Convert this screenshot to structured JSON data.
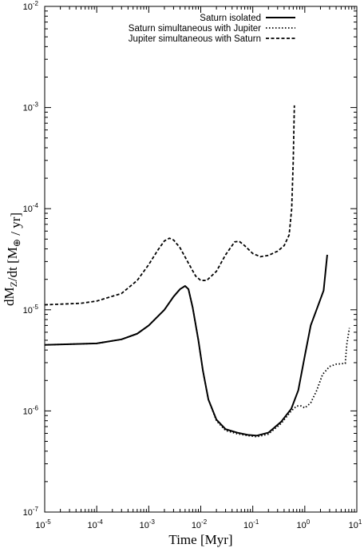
{
  "chart_data": {
    "type": "line",
    "title": "",
    "xlabel": "Time [Myr]",
    "ylabel": "dM_Z/dt [M_⊕ / yr]",
    "x_scale": "log",
    "y_scale": "log",
    "xlim": [
      1e-05,
      10
    ],
    "ylim": [
      1e-07,
      0.01
    ],
    "grid": false,
    "legend_position": "top-right",
    "x_ticks": [
      {
        "value": 1e-05,
        "base": "10",
        "exp": "-5"
      },
      {
        "value": 0.0001,
        "base": "10",
        "exp": "-4"
      },
      {
        "value": 0.001,
        "base": "10",
        "exp": "-3"
      },
      {
        "value": 0.01,
        "base": "10",
        "exp": "-2"
      },
      {
        "value": 0.1,
        "base": "10",
        "exp": "-1"
      },
      {
        "value": 1,
        "base": "10",
        "exp": "0"
      },
      {
        "value": 10,
        "base": "10",
        "exp": "1"
      }
    ],
    "y_ticks": [
      {
        "value": 1e-07,
        "base": "10",
        "exp": "-7"
      },
      {
        "value": 1e-06,
        "base": "10",
        "exp": "-6"
      },
      {
        "value": 1e-05,
        "base": "10",
        "exp": "-5"
      },
      {
        "value": 0.0001,
        "base": "10",
        "exp": "-4"
      },
      {
        "value": 0.001,
        "base": "10",
        "exp": "-3"
      },
      {
        "value": 0.01,
        "base": "10",
        "exp": "-2"
      }
    ],
    "series": [
      {
        "name": "Saturn isolated",
        "style": "solid",
        "points": [
          [
            1e-05,
            4.5e-06
          ],
          [
            0.0001,
            4.65e-06
          ],
          [
            0.0003,
            5.1e-06
          ],
          [
            0.0006,
            5.8e-06
          ],
          [
            0.001,
            7e-06
          ],
          [
            0.002,
            1e-05
          ],
          [
            0.003,
            1.35e-05
          ],
          [
            0.004,
            1.6e-05
          ],
          [
            0.005,
            1.72e-05
          ],
          [
            0.0058,
            1.6e-05
          ],
          [
            0.007,
            1.05e-05
          ],
          [
            0.009,
            5e-06
          ],
          [
            0.011,
            2.5e-06
          ],
          [
            0.014,
            1.3e-06
          ],
          [
            0.02,
            8.2e-07
          ],
          [
            0.03,
            6.6e-07
          ],
          [
            0.05,
            6.1e-07
          ],
          [
            0.08,
            5.8e-07
          ],
          [
            0.12,
            5.7e-07
          ],
          [
            0.2,
            6.1e-07
          ],
          [
            0.35,
            7.8e-07
          ],
          [
            0.55,
            1.05e-06
          ],
          [
            0.75,
            1.6e-06
          ],
          [
            1.0,
            3.5e-06
          ],
          [
            1.3,
            7e-06
          ],
          [
            1.8,
            1.1e-05
          ],
          [
            2.3,
            1.55e-05
          ],
          [
            2.7,
            3.5e-05
          ]
        ]
      },
      {
        "name": "Saturn simultaneous with Jupiter",
        "style": "dotted",
        "points": [
          [
            1e-05,
            4.5e-06
          ],
          [
            0.0001,
            4.65e-06
          ],
          [
            0.0003,
            5.1e-06
          ],
          [
            0.0006,
            5.8e-06
          ],
          [
            0.001,
            7e-06
          ],
          [
            0.002,
            1e-05
          ],
          [
            0.003,
            1.35e-05
          ],
          [
            0.004,
            1.6e-05
          ],
          [
            0.005,
            1.72e-05
          ],
          [
            0.0058,
            1.6e-05
          ],
          [
            0.007,
            1.05e-05
          ],
          [
            0.009,
            5e-06
          ],
          [
            0.011,
            2.5e-06
          ],
          [
            0.014,
            1.3e-06
          ],
          [
            0.02,
            8e-07
          ],
          [
            0.03,
            6.4e-07
          ],
          [
            0.05,
            5.95e-07
          ],
          [
            0.08,
            5.7e-07
          ],
          [
            0.12,
            5.55e-07
          ],
          [
            0.2,
            5.9e-07
          ],
          [
            0.35,
            7.5e-07
          ],
          [
            0.55,
            1e-06
          ],
          [
            0.7,
            1.12e-06
          ],
          [
            0.85,
            1.12e-06
          ],
          [
            1.0,
            1.07e-06
          ],
          [
            1.3,
            1.2e-06
          ],
          [
            1.7,
            1.6e-06
          ],
          [
            2.2,
            2.3e-06
          ],
          [
            3.0,
            2.75e-06
          ],
          [
            4.0,
            2.9e-06
          ],
          [
            6.0,
            2.95e-06
          ],
          [
            6.4,
            4.5e-06
          ],
          [
            7.2,
            6.6e-06
          ]
        ]
      },
      {
        "name": "Jupiter simultaneous with Saturn",
        "style": "dashed",
        "points": [
          [
            1e-05,
            1.12e-05
          ],
          [
            5e-05,
            1.16e-05
          ],
          [
            0.0001,
            1.22e-05
          ],
          [
            0.0003,
            1.45e-05
          ],
          [
            0.0006,
            1.95e-05
          ],
          [
            0.001,
            2.8e-05
          ],
          [
            0.0015,
            3.9e-05
          ],
          [
            0.002,
            4.8e-05
          ],
          [
            0.0025,
            5.1e-05
          ],
          [
            0.003,
            4.9e-05
          ],
          [
            0.004,
            4.1e-05
          ],
          [
            0.006,
            2.8e-05
          ],
          [
            0.008,
            2.15e-05
          ],
          [
            0.01,
            1.95e-05
          ],
          [
            0.013,
            1.95e-05
          ],
          [
            0.02,
            2.4e-05
          ],
          [
            0.03,
            3.5e-05
          ],
          [
            0.045,
            4.7e-05
          ],
          [
            0.055,
            4.75e-05
          ],
          [
            0.07,
            4.3e-05
          ],
          [
            0.1,
            3.6e-05
          ],
          [
            0.14,
            3.35e-05
          ],
          [
            0.2,
            3.45e-05
          ],
          [
            0.3,
            3.8e-05
          ],
          [
            0.4,
            4.3e-05
          ],
          [
            0.5,
            5.5e-05
          ],
          [
            0.56,
            0.0001
          ],
          [
            0.6,
            0.0003
          ],
          [
            0.63,
            0.00105
          ]
        ]
      }
    ]
  }
}
